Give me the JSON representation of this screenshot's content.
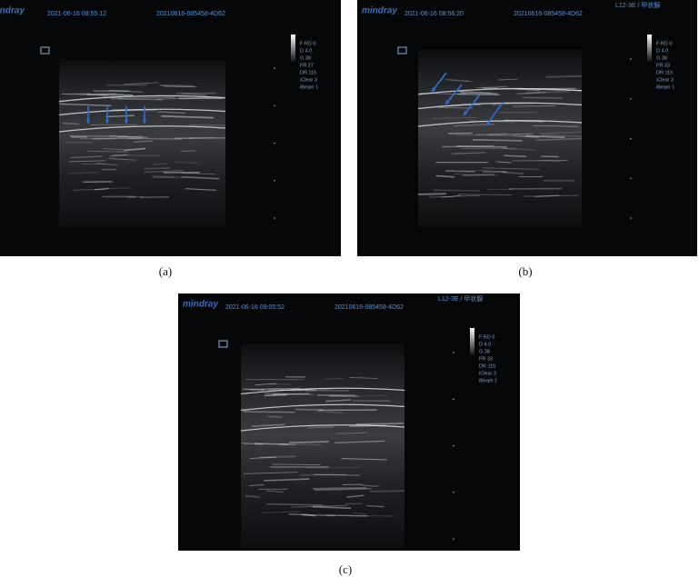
{
  "panels": [
    {
      "label": "(a)",
      "brand": "mindray",
      "timestamp": "2021-06-16 08:55:12",
      "exam_id": "20210616-085458-4D62",
      "params": [
        "F RD 0",
        "D 4.0",
        "G 38",
        "FR 27",
        "DR 115",
        "iClear 3",
        "iBeam 1"
      ]
    },
    {
      "label": "(b)",
      "brand": "mindray",
      "timestamp": "2021-06-16 08:56:20",
      "exam_id": "20210616-085458-4D62",
      "probe": "L12-3E / 甲状腺",
      "params": [
        "F RD 0",
        "D 4.0",
        "G 38",
        "FR 33",
        "DR 115",
        "iClear 3",
        "iBeam 1"
      ]
    },
    {
      "label": "(c)",
      "brand": "mindray",
      "timestamp": "2021-06-16 09:05:52",
      "exam_id": "20210616-085458-4D62",
      "probe": "L12-3E / 甲状腺",
      "params": [
        "F RD 0",
        "D 4.0",
        "G 38",
        "FR 33",
        "DR 115",
        "iClear 3",
        "iBeam 1"
      ]
    }
  ]
}
